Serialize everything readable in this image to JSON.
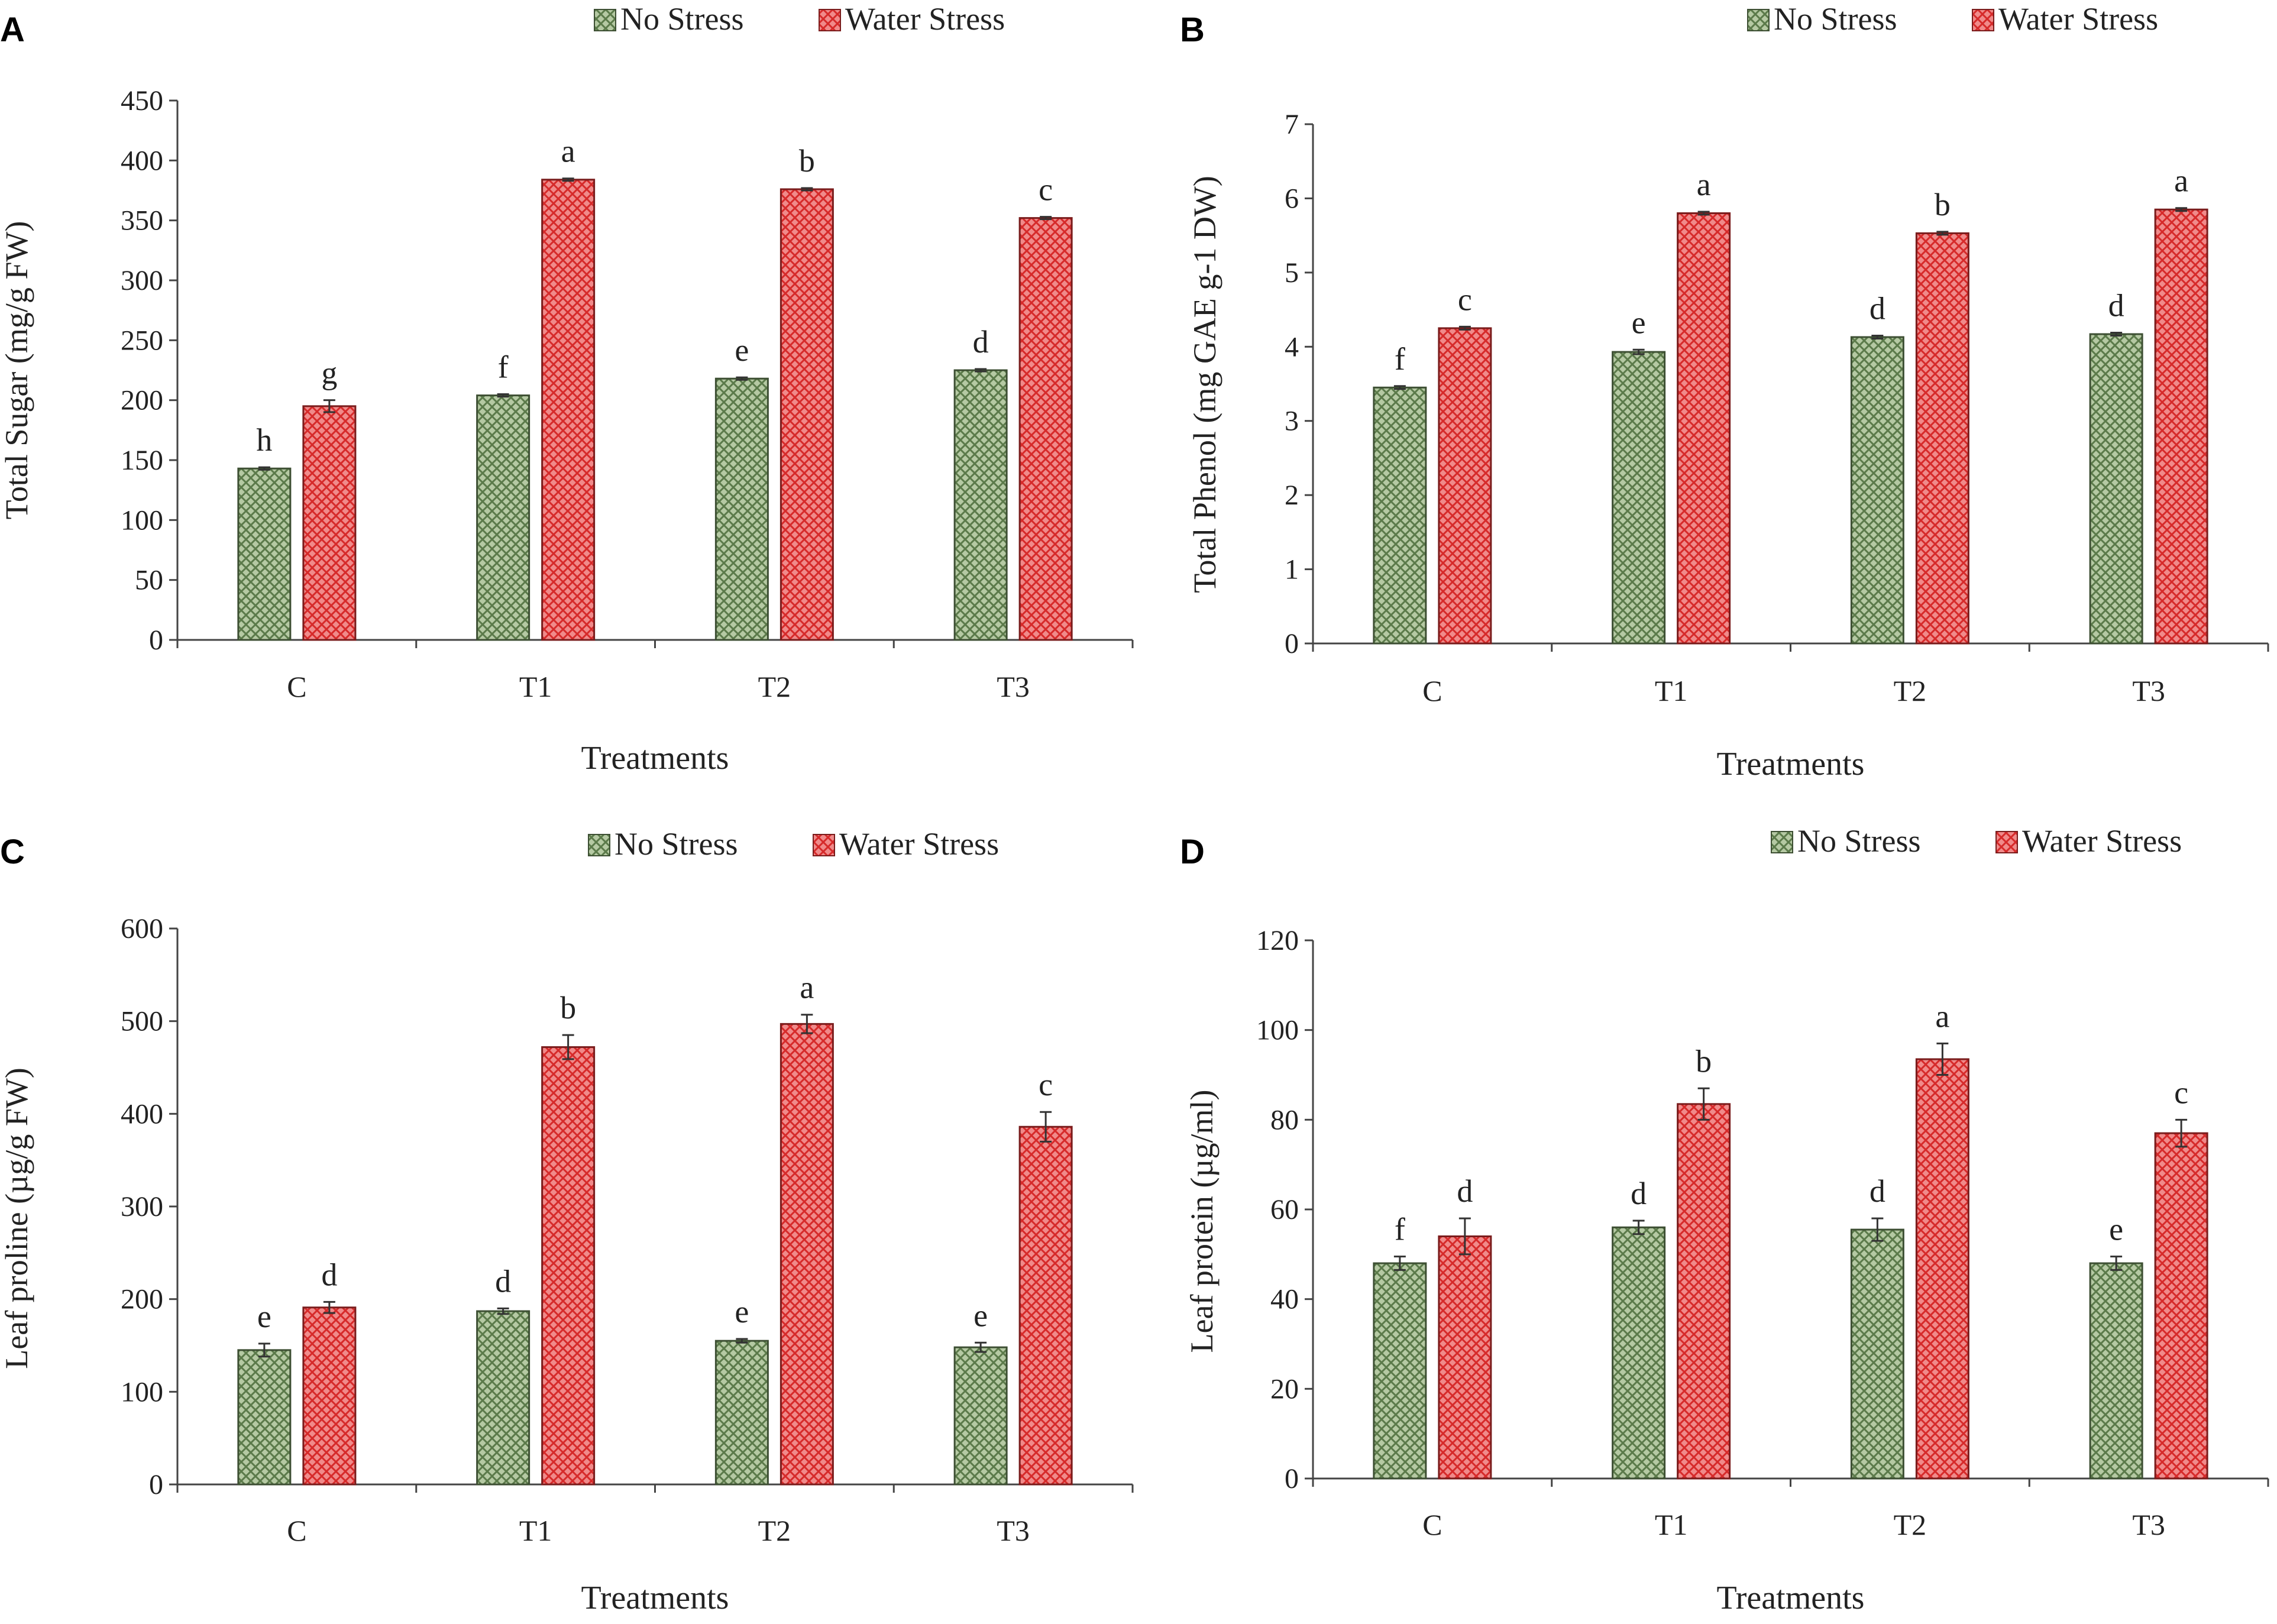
{
  "figure": {
    "panels": [
      "A",
      "B",
      "C",
      "D"
    ]
  },
  "colors": {
    "no_stress_fill": "#b5c9a3",
    "no_stress_pattern": "#5b7a4a",
    "no_stress_edge": "#3d4f33",
    "water_stress_fill": "#f08a8a",
    "water_stress_pattern": "#d62a2a",
    "water_stress_edge": "#7a1c1c",
    "axis": "#444444",
    "text": "#222222"
  },
  "chart_data": [
    {
      "panel": "A",
      "type": "bar",
      "title": "",
      "categories": [
        "C",
        "T1",
        "T2",
        "T3"
      ],
      "xlabel": "Treatments",
      "ylabel": "Total Sugar (mg/g FW)",
      "ylim": [
        0,
        450
      ],
      "yticks": [
        0,
        50,
        100,
        150,
        200,
        250,
        300,
        350,
        400,
        450
      ],
      "legend": "top-right",
      "series": [
        {
          "name": "No Stress",
          "values": [
            143,
            204,
            218,
            225
          ],
          "errors": [
            1,
            1,
            1,
            1
          ],
          "letters": [
            "h",
            "f",
            "e",
            "d"
          ]
        },
        {
          "name": "Water Stress",
          "values": [
            195,
            384,
            376,
            352
          ],
          "errors": [
            5,
            1,
            1,
            1
          ],
          "letters": [
            "g",
            "a",
            "b",
            "c"
          ]
        }
      ]
    },
    {
      "panel": "B",
      "type": "bar",
      "title": "",
      "categories": [
        "C",
        "T1",
        "T2",
        "T3"
      ],
      "xlabel": "Treatments",
      "ylabel": "Total Phenol (mg GAE g-1 DW)",
      "ylim": [
        0,
        7
      ],
      "yticks": [
        0,
        1,
        2,
        3,
        4,
        5,
        6,
        7
      ],
      "legend": "top-right",
      "series": [
        {
          "name": "No Stress",
          "values": [
            3.45,
            3.93,
            4.13,
            4.17
          ],
          "errors": [
            0.02,
            0.03,
            0.02,
            0.02
          ],
          "letters": [
            "f",
            "e",
            "d",
            "d"
          ]
        },
        {
          "name": "Water Stress",
          "values": [
            4.25,
            5.8,
            5.53,
            5.85
          ],
          "errors": [
            0.02,
            0.02,
            0.02,
            0.02
          ],
          "letters": [
            "c",
            "a",
            "b",
            "a"
          ]
        }
      ]
    },
    {
      "panel": "C",
      "type": "bar",
      "title": "",
      "categories": [
        "C",
        "T1",
        "T2",
        "T3"
      ],
      "xlabel": "Treatments",
      "ylabel": "Leaf proline (µg/g FW)",
      "ylim": [
        0,
        600
      ],
      "yticks": [
        0,
        100,
        200,
        300,
        400,
        500,
        600
      ],
      "legend": "top-right",
      "series": [
        {
          "name": "No Stress",
          "values": [
            145,
            187,
            155,
            148
          ],
          "errors": [
            7,
            3,
            2,
            5
          ],
          "letters": [
            "e",
            "d",
            "e",
            "e"
          ]
        },
        {
          "name": "Water Stress",
          "values": [
            191,
            472,
            497,
            386
          ],
          "errors": [
            6,
            13,
            10,
            16
          ],
          "letters": [
            "d",
            "b",
            "a",
            "c"
          ]
        }
      ]
    },
    {
      "panel": "D",
      "type": "bar",
      "title": "",
      "categories": [
        "C",
        "T1",
        "T2",
        "T3"
      ],
      "xlabel": "Treatments",
      "ylabel": "Leaf protein (µg/ml)",
      "ylim": [
        0,
        120
      ],
      "yticks": [
        0,
        20,
        40,
        60,
        80,
        100,
        120
      ],
      "legend": "top-right",
      "series": [
        {
          "name": "No Stress",
          "values": [
            48,
            56,
            55.5,
            48
          ],
          "errors": [
            1.5,
            1.5,
            2.5,
            1.5
          ],
          "letters": [
            "f",
            "d",
            "d",
            "e"
          ]
        },
        {
          "name": "Water Stress",
          "values": [
            54,
            83.5,
            93.5,
            77
          ],
          "errors": [
            4,
            3.5,
            3.5,
            3
          ],
          "letters": [
            "d",
            "b",
            "a",
            "c"
          ]
        }
      ]
    }
  ]
}
